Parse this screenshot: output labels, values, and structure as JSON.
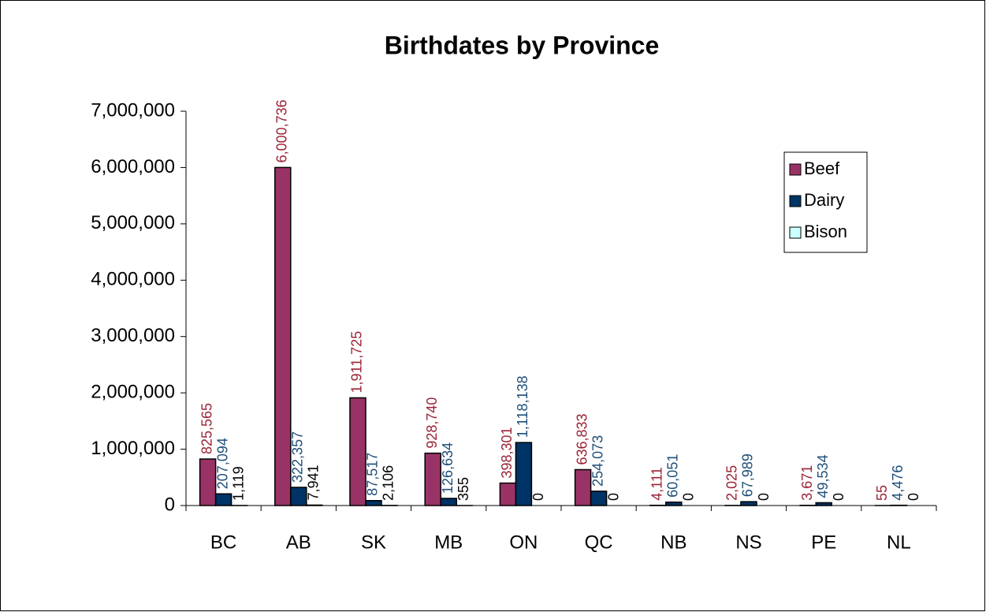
{
  "chart_data": {
    "type": "bar",
    "title": "Birthdates by Province",
    "categories": [
      "BC",
      "AB",
      "SK",
      "MB",
      "ON",
      "QC",
      "NB",
      "NS",
      "PE",
      "NL"
    ],
    "series": [
      {
        "name": "Beef",
        "color": "#993366",
        "label_color": "#9b2335",
        "values": [
          825565,
          6000736,
          1911725,
          928740,
          398301,
          636833,
          4111,
          2025,
          3671,
          55
        ],
        "value_labels": [
          "825,565",
          "6,000,736",
          "1,911,725",
          "928,740",
          "398,301",
          "636,833",
          "4,111",
          "2,025",
          "3,671",
          "55"
        ]
      },
      {
        "name": "Dairy",
        "color": "#003366",
        "label_color": "#1f4e79",
        "values": [
          207094,
          322357,
          87517,
          126634,
          1118138,
          254073,
          60051,
          67989,
          49534,
          4476
        ],
        "value_labels": [
          "207,094",
          "322,357",
          "87,517",
          "126,634",
          "1,118,138",
          "254,073",
          "60,051",
          "67,989",
          "49,534",
          "4,476"
        ]
      },
      {
        "name": "Bison",
        "color": "#ccffff",
        "label_color": "#000000",
        "values": [
          1119,
          7941,
          2106,
          355,
          0,
          0,
          0,
          0,
          0,
          0
        ],
        "value_labels": [
          "1,119",
          "7,941",
          "2,106",
          "355",
          "0",
          "0",
          "0",
          "0",
          "0",
          "0"
        ]
      }
    ],
    "ylim": [
      0,
      7000000
    ],
    "yticks": [
      0,
      {
        "value": 1000000,
        "label": "1,000,000"
      },
      {
        "value": 2000000,
        "label": "2,000,000"
      },
      {
        "value": 3000000,
        "label": "3,000,000"
      },
      {
        "value": 4000000,
        "label": "4,000,000"
      },
      {
        "value": 5000000,
        "label": "5,000,000"
      },
      {
        "value": 6000000,
        "label": "6,000,000"
      },
      {
        "value": 7000000,
        "label": "7,000,000"
      }
    ],
    "legend": "right"
  }
}
